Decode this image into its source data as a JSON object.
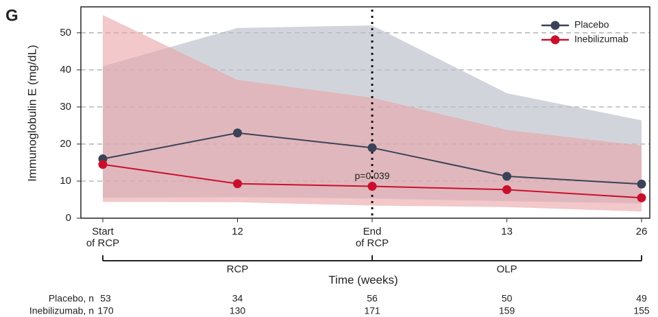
{
  "chart_data": {
    "type": "line_band",
    "panel_label": "G",
    "x_label": "Time (weeks)",
    "y_label": "Immunoglobulin E (mg/dL)",
    "categories": [
      "Start\nof RCP",
      "12",
      "End\nof RCP",
      "13",
      "26"
    ],
    "ylim": [
      0,
      57
    ],
    "yticks": [
      0,
      10,
      20,
      30,
      40,
      50
    ],
    "grid": true,
    "legend": "upper right",
    "series": [
      {
        "name": "Placebo",
        "color": "#3a4257",
        "band_color": "#b8bfc7",
        "values": [
          16,
          23,
          19,
          11.3,
          9.2
        ],
        "upper": [
          41,
          51.3,
          52,
          33.7,
          26.4
        ],
        "lower": [
          5.5,
          5.7,
          5.3,
          4.6,
          4.0
        ]
      },
      {
        "name": "Inebilizumab",
        "color": "#c8102e",
        "band_color": "#e9a4a7",
        "values": [
          14.5,
          9.3,
          8.6,
          7.7,
          5.5
        ],
        "upper": [
          54.8,
          37.3,
          32.5,
          23.8,
          19.6
        ],
        "lower": [
          4.4,
          4.3,
          3.4,
          3.0,
          1.8
        ]
      }
    ],
    "annotation": "p=0.039",
    "period_labels": [
      "RCP",
      "OLP"
    ],
    "risk_table": {
      "rows": [
        {
          "label": "Placebo, n",
          "values": [
            53,
            34,
            56,
            50,
            49
          ]
        },
        {
          "label": "Inebilizumab, n",
          "values": [
            170,
            130,
            171,
            159,
            155
          ]
        }
      ]
    }
  }
}
